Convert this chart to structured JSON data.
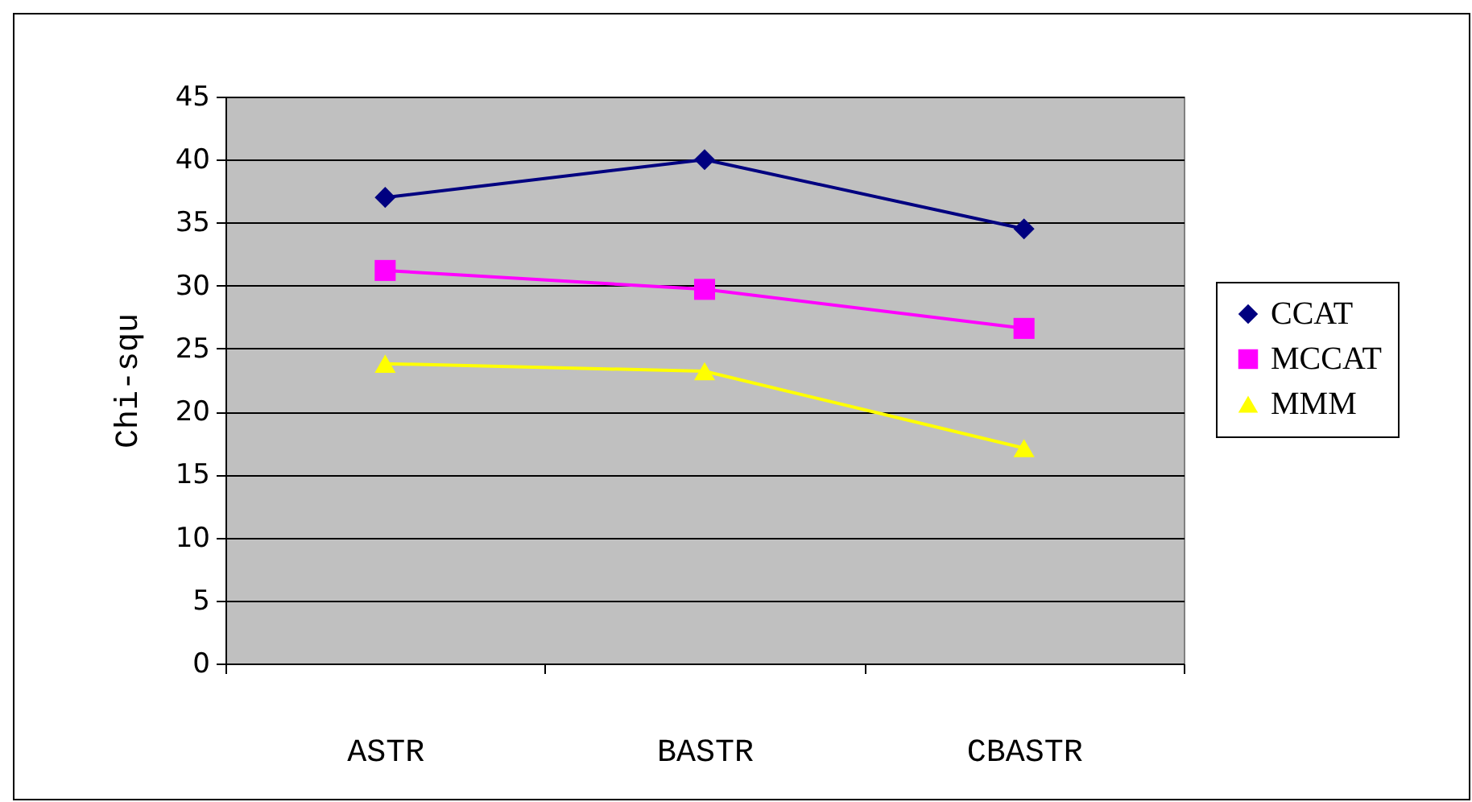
{
  "chart_data": {
    "type": "line",
    "ylabel": "Chi-squ",
    "categories": [
      "ASTR",
      "BASTR",
      "CBASTR"
    ],
    "series": [
      {
        "name": "CCAT",
        "color": "#000080",
        "marker": "diamond",
        "values": [
          37,
          40,
          34.5
        ]
      },
      {
        "name": "MCCAT",
        "color": "#ff00ff",
        "marker": "square",
        "values": [
          31.2,
          29.7,
          26.6
        ]
      },
      {
        "name": "MMM",
        "color": "#ffff00",
        "marker": "triangle",
        "values": [
          23.8,
          23.2,
          17.1
        ]
      }
    ],
    "ylim": [
      0,
      45
    ],
    "yticks": [
      0,
      5,
      10,
      15,
      20,
      25,
      30,
      35,
      40,
      45
    ],
    "grid": "y",
    "legend": "right",
    "line_style": "solid"
  }
}
